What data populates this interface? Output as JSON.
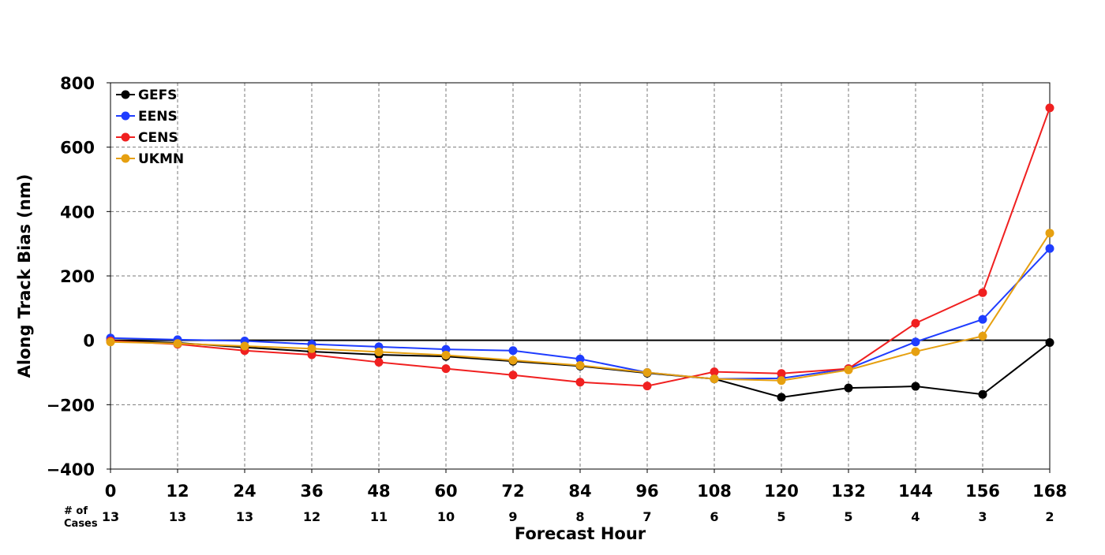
{
  "chart_data": {
    "type": "line",
    "title": "",
    "xlabel": "Forecast Hour",
    "ylabel": "Along Track Bias (nm)",
    "x": [
      0,
      12,
      24,
      36,
      48,
      60,
      72,
      84,
      96,
      108,
      120,
      132,
      144,
      156,
      168
    ],
    "xlim": [
      0,
      168
    ],
    "ylim": [
      -400,
      800
    ],
    "yticks": [
      -400,
      -200,
      0,
      200,
      400,
      600,
      800
    ],
    "ytick_labels": [
      "−400",
      "−200",
      "0",
      "200",
      "400",
      "600",
      "800"
    ],
    "grid": true,
    "zero_line": true,
    "legend_position": "top-left",
    "cases_label_line1": "# of",
    "cases_label_line2": "Cases",
    "cases": [
      13,
      13,
      13,
      12,
      11,
      10,
      9,
      8,
      7,
      6,
      5,
      5,
      4,
      3,
      2
    ],
    "series": [
      {
        "name": "GEFS",
        "color": "#000000",
        "values": [
          -2,
          -8,
          -22,
          -35,
          -45,
          -50,
          -65,
          -80,
          -102,
          -120,
          -177,
          -148,
          -143,
          -168,
          -7
        ]
      },
      {
        "name": "EENS",
        "color": "#1f3dff",
        "values": [
          7,
          2,
          -2,
          -12,
          -20,
          -28,
          -32,
          -58,
          -100,
          -120,
          -118,
          -88,
          -5,
          65,
          285
        ]
      },
      {
        "name": "CENS",
        "color": "#f02020",
        "values": [
          -2,
          -12,
          -32,
          -45,
          -68,
          -88,
          -108,
          -130,
          -142,
          -98,
          -103,
          -88,
          53,
          148,
          722
        ]
      },
      {
        "name": "UKMN",
        "color": "#e6a010",
        "values": [
          -5,
          -10,
          -18,
          -26,
          -36,
          -46,
          -62,
          -78,
          -100,
          -120,
          -125,
          -92,
          -35,
          13,
          333
        ]
      }
    ]
  }
}
